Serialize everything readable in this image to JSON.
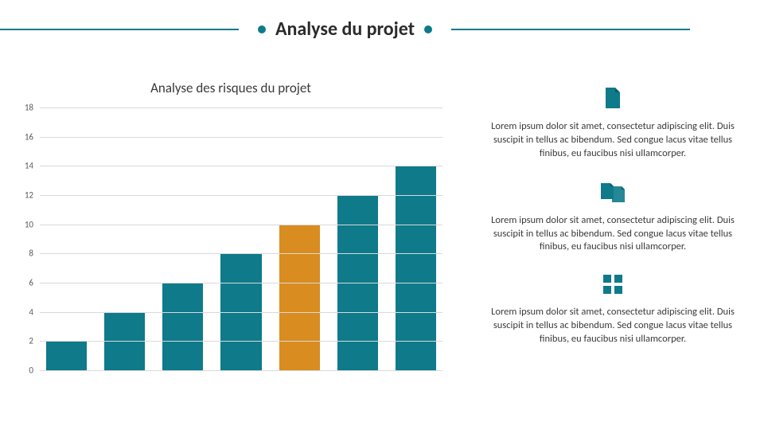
{
  "colors": {
    "accent": "#0e7a8a",
    "highlight": "#d98c1f",
    "grid": "#d9d9d9",
    "text": "#3a3a3a",
    "bg": "#ffffff"
  },
  "header": {
    "title": "Analyse du projet",
    "rule_color": "#0e7a8a",
    "dot_color": "#0e7a8a"
  },
  "chart": {
    "title": "Analyse des risques du projet",
    "type": "bar",
    "title_fontsize": 17,
    "ylabel_fontsize": 11,
    "ylim": [
      0,
      18
    ],
    "ytick_step": 2,
    "grid_color": "#d9d9d9",
    "background_color": "#ffffff",
    "bar_width": 0.7,
    "categories": [
      "",
      "",
      "",
      "",
      "",
      "",
      ""
    ],
    "values": [
      2,
      4,
      6,
      8,
      10,
      12,
      14
    ],
    "bar_colors": [
      "#0e7a8a",
      "#0e7a8a",
      "#0e7a8a",
      "#0e7a8a",
      "#d98c1f",
      "#0e7a8a",
      "#0e7a8a"
    ]
  },
  "info": [
    {
      "icon": "document-icon",
      "icon_color": "#0e7a8a",
      "text": "Lorem ipsum dolor sit amet, consectetur adipiscing elit. Duis suscipit in tellus ac bibendum. Sed congue lacus vitae tellus finibus, eu faucibus nisi ullamcorper."
    },
    {
      "icon": "docs-stack-icon",
      "icon_color": "#0e7a8a",
      "text": "Lorem ipsum dolor sit amet, consectetur adipiscing elit. Duis suscipit in tellus ac bibendum. Sed congue lacus vitae tellus finibus, eu faucibus nisi ullamcorper."
    },
    {
      "icon": "grid-icon",
      "icon_color": "#0e7a8a",
      "text": "Lorem ipsum dolor sit amet, consectetur adipiscing elit. Duis suscipit in tellus ac bibendum. Sed congue lacus vitae tellus finibus, eu faucibus nisi ullamcorper."
    }
  ]
}
